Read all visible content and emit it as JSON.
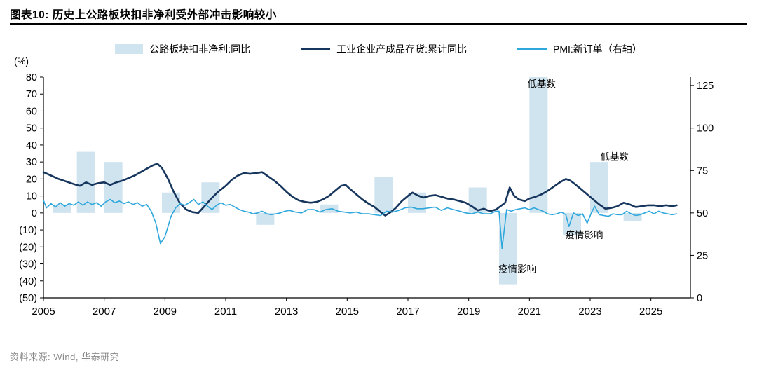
{
  "page": {
    "title": "图表10:  历史上公路板块扣非净利受外部冲击影响较小",
    "source": "资料来源: Wind, 华泰研究",
    "y_left_unit": "(%)"
  },
  "chart_data": {
    "type": "combo",
    "title": "历史上公路板块扣非净利受外部冲击影响较小",
    "legend": [
      {
        "label": "公路板块扣非净利:同比",
        "type": "bar",
        "color": "#d0e4f0"
      },
      {
        "label": "工业企业产成品存货:累计同比",
        "type": "line",
        "color": "#17365d"
      },
      {
        "label": "PMI:新订单（右轴）",
        "type": "line",
        "color": "#2ea7dc"
      }
    ],
    "x_axis": {
      "min": 2005,
      "max": 2026.3,
      "ticks": [
        {
          "v": 2005,
          "label": "2005"
        },
        {
          "v": 2007,
          "label": "2007"
        },
        {
          "v": 2009,
          "label": "2009"
        },
        {
          "v": 2011,
          "label": "2011"
        },
        {
          "v": 2013,
          "label": "2013"
        },
        {
          "v": 2015,
          "label": "2015"
        },
        {
          "v": 2017,
          "label": "2017"
        },
        {
          "v": 2019,
          "label": "2019"
        },
        {
          "v": 2021,
          "label": "2021"
        },
        {
          "v": 2023,
          "label": "2023"
        },
        {
          "v": 2025,
          "label": "2025"
        }
      ]
    },
    "y_left": {
      "min": -50,
      "max": 80,
      "unit": "(%)",
      "ticks": [
        {
          "v": 80,
          "label": "80"
        },
        {
          "v": 70,
          "label": "70"
        },
        {
          "v": 60,
          "label": "60"
        },
        {
          "v": 50,
          "label": "50"
        },
        {
          "v": 40,
          "label": "40"
        },
        {
          "v": 30,
          "label": "30"
        },
        {
          "v": 20,
          "label": "20"
        },
        {
          "v": 10,
          "label": "10"
        },
        {
          "v": 0,
          "label": "0"
        },
        {
          "v": -10,
          "label": "(10)"
        },
        {
          "v": -20,
          "label": "(20)"
        },
        {
          "v": -30,
          "label": "(30)"
        },
        {
          "v": -40,
          "label": "(40)"
        },
        {
          "v": -50,
          "label": "(50)"
        }
      ]
    },
    "y_right": {
      "min": 0,
      "max": 125,
      "align_right_value": 50,
      "align_left_value": 0,
      "ticks": [
        {
          "v": 125,
          "label": "125"
        },
        {
          "v": 100,
          "label": "100"
        },
        {
          "v": 75,
          "label": "75"
        },
        {
          "v": 50,
          "label": "50"
        },
        {
          "v": 25,
          "label": "25"
        },
        {
          "v": 0,
          "label": "0"
        }
      ]
    },
    "bars": {
      "name": "公路板块扣非净利:同比",
      "color": "#d0e4f0",
      "data": [
        [
          2005.6,
          5
        ],
        [
          2006.4,
          36
        ],
        [
          2007.3,
          30
        ],
        [
          2009.2,
          12
        ],
        [
          2010.5,
          18
        ],
        [
          2012.3,
          -7
        ],
        [
          2014.4,
          5
        ],
        [
          2016.2,
          21
        ],
        [
          2017.3,
          12
        ],
        [
          2019.3,
          15
        ],
        [
          2020.3,
          -42
        ],
        [
          2021.3,
          80
        ],
        [
          2022.4,
          -13
        ],
        [
          2023.3,
          30
        ],
        [
          2024.4,
          -5
        ]
      ]
    },
    "inventory_line": {
      "name": "工业企业产成品存货:累计同比",
      "color": "#17365d",
      "axis": "left",
      "data": [
        [
          2005.0,
          24
        ],
        [
          2005.25,
          22
        ],
        [
          2005.5,
          20
        ],
        [
          2005.75,
          18.5
        ],
        [
          2006.0,
          17
        ],
        [
          2006.2,
          16
        ],
        [
          2006.4,
          18
        ],
        [
          2006.6,
          16.5
        ],
        [
          2006.8,
          17.5
        ],
        [
          2007.0,
          18
        ],
        [
          2007.2,
          16.5
        ],
        [
          2007.4,
          18
        ],
        [
          2007.6,
          19
        ],
        [
          2007.8,
          20.5
        ],
        [
          2008.0,
          22
        ],
        [
          2008.2,
          24
        ],
        [
          2008.4,
          26
        ],
        [
          2008.6,
          28
        ],
        [
          2008.75,
          29
        ],
        [
          2008.9,
          26.5
        ],
        [
          2009.1,
          20
        ],
        [
          2009.3,
          12
        ],
        [
          2009.5,
          5.5
        ],
        [
          2009.7,
          2
        ],
        [
          2009.9,
          0.5
        ],
        [
          2010.1,
          0
        ],
        [
          2010.3,
          4
        ],
        [
          2010.5,
          8
        ],
        [
          2010.75,
          12.5
        ],
        [
          2011.0,
          16
        ],
        [
          2011.2,
          19.5
        ],
        [
          2011.4,
          22
        ],
        [
          2011.6,
          23.5
        ],
        [
          2011.8,
          23
        ],
        [
          2012.0,
          23.5
        ],
        [
          2012.2,
          24
        ],
        [
          2012.4,
          21.5
        ],
        [
          2012.6,
          19
        ],
        [
          2012.8,
          16
        ],
        [
          2013.0,
          12.5
        ],
        [
          2013.2,
          9.5
        ],
        [
          2013.4,
          7.5
        ],
        [
          2013.6,
          6.5
        ],
        [
          2013.8,
          6
        ],
        [
          2014.0,
          6.5
        ],
        [
          2014.2,
          8
        ],
        [
          2014.4,
          10
        ],
        [
          2014.6,
          13
        ],
        [
          2014.8,
          16
        ],
        [
          2014.95,
          16.5
        ],
        [
          2015.1,
          14
        ],
        [
          2015.3,
          11
        ],
        [
          2015.5,
          8
        ],
        [
          2015.7,
          5.5
        ],
        [
          2015.9,
          3.5
        ],
        [
          2016.1,
          0.5
        ],
        [
          2016.25,
          -1.5
        ],
        [
          2016.4,
          0
        ],
        [
          2016.6,
          3
        ],
        [
          2016.8,
          7
        ],
        [
          2017.0,
          10
        ],
        [
          2017.15,
          12
        ],
        [
          2017.3,
          10.5
        ],
        [
          2017.5,
          9
        ],
        [
          2017.7,
          10
        ],
        [
          2017.9,
          10.5
        ],
        [
          2018.1,
          9.5
        ],
        [
          2018.3,
          8.5
        ],
        [
          2018.5,
          8
        ],
        [
          2018.7,
          7
        ],
        [
          2018.9,
          6
        ],
        [
          2019.1,
          4
        ],
        [
          2019.3,
          1.5
        ],
        [
          2019.5,
          2.5
        ],
        [
          2019.7,
          1
        ],
        [
          2019.9,
          2
        ],
        [
          2020.2,
          6
        ],
        [
          2020.35,
          15
        ],
        [
          2020.5,
          10
        ],
        [
          2020.65,
          8
        ],
        [
          2020.85,
          7
        ],
        [
          2021.0,
          8.5
        ],
        [
          2021.2,
          9.5
        ],
        [
          2021.4,
          11
        ],
        [
          2021.6,
          13
        ],
        [
          2021.8,
          15.5
        ],
        [
          2022.0,
          18
        ],
        [
          2022.2,
          20
        ],
        [
          2022.35,
          19
        ],
        [
          2022.5,
          17
        ],
        [
          2022.7,
          14
        ],
        [
          2022.9,
          11
        ],
        [
          2023.1,
          8
        ],
        [
          2023.3,
          5
        ],
        [
          2023.5,
          2.5
        ],
        [
          2023.7,
          3
        ],
        [
          2023.9,
          4
        ],
        [
          2024.1,
          6
        ],
        [
          2024.3,
          5
        ],
        [
          2024.5,
          3.5
        ],
        [
          2024.7,
          4
        ],
        [
          2024.9,
          4.5
        ],
        [
          2025.1,
          4.5
        ],
        [
          2025.3,
          4
        ],
        [
          2025.5,
          4.5
        ],
        [
          2025.7,
          4
        ],
        [
          2025.85,
          4.5
        ]
      ]
    },
    "pmi_line": {
      "name": "PMI:新订单（右轴）",
      "color": "#2ea7dc",
      "axis": "right",
      "data": [
        [
          2005.0,
          57.5
        ],
        [
          2005.1,
          53
        ],
        [
          2005.25,
          55.5
        ],
        [
          2005.4,
          53.5
        ],
        [
          2005.55,
          56
        ],
        [
          2005.7,
          54
        ],
        [
          2005.85,
          55.5
        ],
        [
          2006.0,
          54.5
        ],
        [
          2006.15,
          56.5
        ],
        [
          2006.3,
          54.5
        ],
        [
          2006.45,
          56.5
        ],
        [
          2006.6,
          55
        ],
        [
          2006.75,
          56
        ],
        [
          2006.9,
          54
        ],
        [
          2007.05,
          56.5
        ],
        [
          2007.2,
          58
        ],
        [
          2007.35,
          56
        ],
        [
          2007.5,
          57
        ],
        [
          2007.65,
          55.5
        ],
        [
          2007.8,
          56.5
        ],
        [
          2007.95,
          55
        ],
        [
          2008.1,
          56
        ],
        [
          2008.25,
          54
        ],
        [
          2008.4,
          55
        ],
        [
          2008.55,
          51
        ],
        [
          2008.7,
          44
        ],
        [
          2008.85,
          32
        ],
        [
          2009.0,
          36
        ],
        [
          2009.1,
          42
        ],
        [
          2009.2,
          48
        ],
        [
          2009.35,
          53
        ],
        [
          2009.5,
          55.5
        ],
        [
          2009.65,
          54.5
        ],
        [
          2009.8,
          56
        ],
        [
          2009.95,
          58
        ],
        [
          2010.1,
          55
        ],
        [
          2010.25,
          56.5
        ],
        [
          2010.4,
          54
        ],
        [
          2010.55,
          52
        ],
        [
          2010.7,
          54.5
        ],
        [
          2010.85,
          56
        ],
        [
          2011.0,
          54.5
        ],
        [
          2011.15,
          55
        ],
        [
          2011.3,
          53.5
        ],
        [
          2011.45,
          52
        ],
        [
          2011.6,
          51
        ],
        [
          2011.75,
          50.5
        ],
        [
          2011.9,
          49.5
        ],
        [
          2012.05,
          50
        ],
        [
          2012.2,
          51
        ],
        [
          2012.35,
          49.5
        ],
        [
          2012.5,
          49
        ],
        [
          2012.65,
          49.5
        ],
        [
          2012.8,
          50
        ],
        [
          2012.95,
          51
        ],
        [
          2013.1,
          51.5
        ],
        [
          2013.3,
          50.5
        ],
        [
          2013.5,
          50
        ],
        [
          2013.7,
          52
        ],
        [
          2013.9,
          52
        ],
        [
          2014.1,
          50.5
        ],
        [
          2014.3,
          52
        ],
        [
          2014.5,
          52.5
        ],
        [
          2014.7,
          51
        ],
        [
          2014.9,
          50.5
        ],
        [
          2015.1,
          50
        ],
        [
          2015.3,
          50.5
        ],
        [
          2015.5,
          49.5
        ],
        [
          2015.7,
          49.5
        ],
        [
          2015.9,
          49
        ],
        [
          2016.1,
          48.5
        ],
        [
          2016.3,
          51
        ],
        [
          2016.5,
          50.5
        ],
        [
          2016.7,
          51.5
        ],
        [
          2016.9,
          53
        ],
        [
          2017.1,
          53.5
        ],
        [
          2017.3,
          52.5
        ],
        [
          2017.5,
          52.5
        ],
        [
          2017.7,
          53
        ],
        [
          2017.9,
          53.5
        ],
        [
          2018.1,
          51.5
        ],
        [
          2018.3,
          53
        ],
        [
          2018.5,
          52
        ],
        [
          2018.7,
          51
        ],
        [
          2018.9,
          50
        ],
        [
          2019.1,
          49.5
        ],
        [
          2019.3,
          50.5
        ],
        [
          2019.5,
          49.5
        ],
        [
          2019.7,
          49.5
        ],
        [
          2019.9,
          51
        ],
        [
          2020.0,
          51
        ],
        [
          2020.1,
          29
        ],
        [
          2020.25,
          52
        ],
        [
          2020.4,
          51
        ],
        [
          2020.55,
          52
        ],
        [
          2020.7,
          52.5
        ],
        [
          2020.85,
          53
        ],
        [
          2021.0,
          52
        ],
        [
          2021.15,
          53
        ],
        [
          2021.3,
          52
        ],
        [
          2021.45,
          51
        ],
        [
          2021.6,
          49.5
        ],
        [
          2021.75,
          49
        ],
        [
          2021.9,
          49.5
        ],
        [
          2022.05,
          50.5
        ],
        [
          2022.2,
          49
        ],
        [
          2022.3,
          42
        ],
        [
          2022.45,
          50
        ],
        [
          2022.6,
          48.5
        ],
        [
          2022.75,
          49.5
        ],
        [
          2022.9,
          44
        ],
        [
          2023.05,
          50.5
        ],
        [
          2023.15,
          54
        ],
        [
          2023.3,
          49
        ],
        [
          2023.45,
          48.5
        ],
        [
          2023.6,
          48
        ],
        [
          2023.75,
          49.5
        ],
        [
          2023.9,
          49
        ],
        [
          2024.05,
          49
        ],
        [
          2024.2,
          51
        ],
        [
          2024.35,
          49.5
        ],
        [
          2024.5,
          48.5
        ],
        [
          2024.65,
          49
        ],
        [
          2024.8,
          50
        ],
        [
          2024.95,
          51
        ],
        [
          2025.1,
          49.5
        ],
        [
          2025.25,
          51
        ],
        [
          2025.4,
          50
        ],
        [
          2025.55,
          49.5
        ],
        [
          2025.7,
          49
        ],
        [
          2025.85,
          49.5
        ]
      ]
    },
    "annotations": [
      {
        "x": 2021.4,
        "y": 74,
        "text": "低基数"
      },
      {
        "x": 2023.8,
        "y": 31,
        "text": "低基数"
      },
      {
        "x": 2020.6,
        "y": -35,
        "text": "疫情影响"
      },
      {
        "x": 2022.8,
        "y": -15,
        "text": "疫情影响"
      }
    ]
  }
}
